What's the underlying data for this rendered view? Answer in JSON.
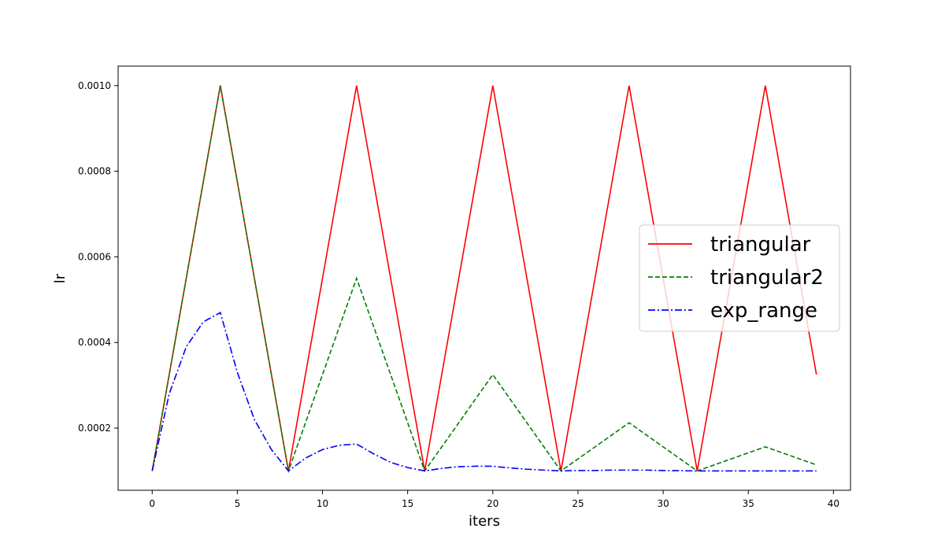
{
  "chart_data": {
    "type": "line",
    "title": "",
    "xlabel": "iters",
    "ylabel": "lr",
    "xlim": [
      -2,
      41
    ],
    "ylim": [
      5.49e-05,
      0.00104552
    ],
    "x_ticks": [
      0,
      5,
      10,
      15,
      20,
      25,
      30,
      35,
      40
    ],
    "x_tick_labels": [
      "0",
      "5",
      "10",
      "15",
      "20",
      "25",
      "30",
      "35",
      "40"
    ],
    "y_ticks": [
      0.0002,
      0.0004,
      0.0006,
      0.0008,
      0.001
    ],
    "y_tick_labels": [
      "0.0002",
      "0.0004",
      "0.0006",
      "0.0008",
      "0.0010"
    ],
    "grid": false,
    "legend_position": "center-right",
    "x": [
      0,
      1,
      2,
      3,
      4,
      5,
      6,
      7,
      8,
      9,
      10,
      11,
      12,
      13,
      14,
      15,
      16,
      17,
      18,
      19,
      20,
      21,
      22,
      23,
      24,
      25,
      26,
      27,
      28,
      29,
      30,
      31,
      32,
      33,
      34,
      35,
      36,
      37,
      38,
      39
    ],
    "series": [
      {
        "name": "triangular",
        "color": "#ff0000",
        "style": "solid",
        "values": [
          0.0001,
          0.000325,
          0.00055,
          0.000775,
          0.001,
          0.000775,
          0.00055,
          0.000325,
          0.0001,
          0.000325,
          0.00055,
          0.000775,
          0.001,
          0.000775,
          0.00055,
          0.000325,
          0.0001,
          0.000325,
          0.00055,
          0.000775,
          0.001,
          0.000775,
          0.00055,
          0.000325,
          0.0001,
          0.000325,
          0.00055,
          0.000775,
          0.001,
          0.000775,
          0.00055,
          0.000325,
          0.0001,
          0.000325,
          0.00055,
          0.000775,
          0.001,
          0.000775,
          0.00055,
          0.000325
        ]
      },
      {
        "name": "triangular2",
        "color": "#008000",
        "style": "dashed",
        "values": [
          0.0001,
          0.000325,
          0.00055,
          0.000775,
          0.001,
          0.000775,
          0.00055,
          0.000325,
          0.0001,
          0.0002125,
          0.000325,
          0.0004375,
          0.00055,
          0.0004375,
          0.000325,
          0.0002125,
          0.0001,
          0.00015625,
          0.0002125,
          0.00026875,
          0.000325,
          0.00026875,
          0.0002125,
          0.00015625,
          0.0001,
          0.000128125,
          0.00015625,
          0.000184375,
          0.0002125,
          0.000184375,
          0.00015625,
          0.000128125,
          0.0001,
          0.00011406,
          0.00012813,
          0.00014219,
          0.00015625,
          0.00014219,
          0.00012813,
          0.00011406
        ]
      },
      {
        "name": "exp_range",
        "color": "#0000ff",
        "style": "dashdot",
        "values": [
          0.0001,
          0.00028,
          0.00039,
          0.000448,
          0.00047,
          0.00033,
          0.00022,
          0.00015,
          0.0001,
          0.00013,
          0.00015,
          0.00016,
          0.000163,
          0.00014,
          0.00012,
          0.000108,
          0.0001,
          0.000106,
          0.00011,
          0.000111,
          0.000111,
          0.000107,
          0.000104,
          0.000102,
          0.0001,
          0.000101,
          0.000101,
          0.000102,
          0.000102,
          0.000102,
          0.000101,
          0.0001005,
          0.0001,
          0.0001,
          0.0001,
          0.0001,
          0.0001,
          0.0001,
          0.0001,
          0.0001
        ]
      }
    ]
  }
}
